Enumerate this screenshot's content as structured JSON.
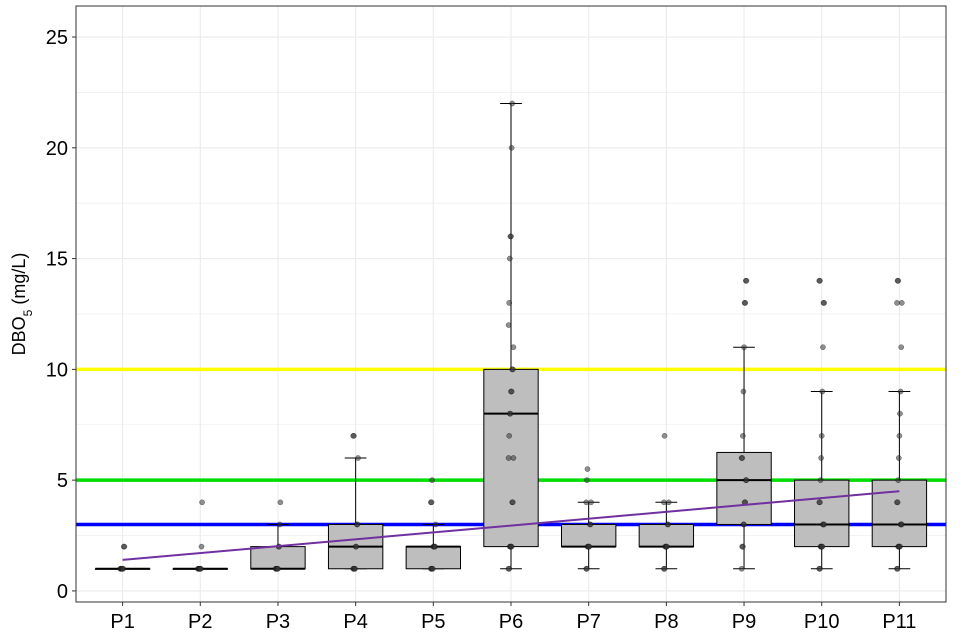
{
  "chart_data": {
    "type": "box",
    "title": "",
    "xlabel": "",
    "ylabel": {
      "main": "DBO",
      "subscript": "5",
      "unit": " (mg/L)"
    },
    "ylim": [
      0,
      25
    ],
    "y_ticks": [
      0,
      5,
      10,
      15,
      20,
      25
    ],
    "grid": true,
    "legend": "none",
    "categories": [
      "P1",
      "P2",
      "P3",
      "P4",
      "P5",
      "P6",
      "P7",
      "P8",
      "P9",
      "P10",
      "P11"
    ],
    "boxes": [
      {
        "min": 1,
        "q1": 1,
        "median": 1,
        "q3": 1,
        "max": 1
      },
      {
        "min": 1,
        "q1": 1,
        "median": 1,
        "q3": 1,
        "max": 1
      },
      {
        "min": 1,
        "q1": 1,
        "median": 1,
        "q3": 2,
        "max": 3
      },
      {
        "min": 1,
        "q1": 1,
        "median": 2,
        "q3": 3,
        "max": 6
      },
      {
        "min": 1,
        "q1": 1,
        "median": 2,
        "q3": 2,
        "max": 3
      },
      {
        "min": 1,
        "q1": 2,
        "median": 8,
        "q3": 10,
        "max": 22
      },
      {
        "min": 1,
        "q1": 2,
        "median": 2,
        "q3": 3,
        "max": 4
      },
      {
        "min": 1,
        "q1": 2,
        "median": 2,
        "q3": 3,
        "max": 4
      },
      {
        "min": 1,
        "q1": 3,
        "median": 5,
        "q3": 6.25,
        "max": 11
      },
      {
        "min": 1,
        "q1": 2,
        "median": 3,
        "q3": 5,
        "max": 9
      },
      {
        "min": 1,
        "q1": 2,
        "median": 3,
        "q3": 5,
        "max": 9
      }
    ],
    "points": [
      [
        1,
        1,
        1,
        1,
        1,
        1,
        2,
        2
      ],
      [
        1,
        1,
        1,
        1,
        1,
        1,
        2,
        4
      ],
      [
        1,
        1,
        1,
        1,
        1,
        2,
        2,
        3,
        4
      ],
      [
        1,
        1,
        1,
        1,
        2,
        2,
        3,
        3,
        6,
        7,
        7
      ],
      [
        1,
        1,
        1,
        1,
        2,
        2,
        2,
        2,
        3,
        4,
        4,
        5
      ],
      [
        1,
        1,
        2,
        2,
        2,
        2,
        4,
        4,
        6,
        6,
        7,
        8,
        8,
        9,
        9,
        10,
        10,
        11,
        12,
        13,
        15,
        16,
        16,
        20,
        22
      ],
      [
        1,
        1,
        2,
        2,
        2,
        2,
        3,
        3,
        4,
        4,
        5,
        5.5
      ],
      [
        1,
        1,
        2,
        2,
        2,
        2,
        3,
        3,
        4,
        4,
        7
      ],
      [
        1,
        2,
        2,
        3,
        3,
        4,
        4,
        5,
        5,
        6,
        6,
        7,
        9,
        11,
        13,
        13,
        14,
        14
      ],
      [
        1,
        1,
        2,
        2,
        2,
        2,
        3,
        3,
        3,
        4,
        4,
        5,
        6,
        7,
        9,
        11,
        13,
        13,
        14,
        14
      ],
      [
        1,
        1,
        2,
        2,
        2,
        2,
        3,
        3,
        3,
        4,
        4,
        5,
        6,
        7,
        8,
        9,
        11,
        13,
        13,
        14,
        14
      ]
    ],
    "reference_lines": [
      {
        "y": 10,
        "color": "#ffff00"
      },
      {
        "y": 5,
        "color": "#00dd00"
      },
      {
        "y": 3,
        "color": "#0000ff"
      }
    ],
    "trend_line": {
      "color": "#7030a0",
      "x": [
        1,
        11
      ],
      "y": [
        1.4,
        4.5
      ]
    },
    "colors": {
      "box_fill": "#bebebe",
      "box_stroke": "#000000",
      "point": "#333333",
      "grid": "#ebebeb",
      "panel_border": "#333333"
    }
  }
}
